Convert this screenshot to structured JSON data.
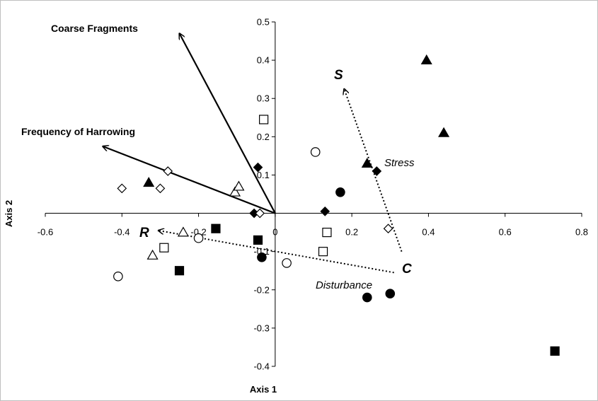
{
  "chart_data": {
    "type": "scatter",
    "title": "",
    "xlabel": "Axis 1",
    "ylabel": "Axis 2",
    "xlim": [
      -0.6,
      0.8
    ],
    "ylim": [
      -0.4,
      0.5
    ],
    "x_ticks": [
      "-0.6",
      "-0.4",
      "-0.2",
      "0",
      "0.2",
      "0.4",
      "0.6",
      "0.8"
    ],
    "y_ticks": [
      "0.5",
      "0.4",
      "0.3",
      "0.2",
      "0.1",
      "-0.1",
      "-0.2",
      "-0.3",
      "-0.4"
    ],
    "grid": false,
    "series": [
      {
        "marker": "filled-triangle",
        "points": [
          [
            -0.33,
            0.08
          ],
          [
            0.24,
            0.13
          ],
          [
            0.395,
            0.4
          ],
          [
            0.44,
            0.21
          ]
        ]
      },
      {
        "marker": "open-triangle",
        "points": [
          [
            -0.32,
            -0.11
          ],
          [
            -0.24,
            -0.05
          ],
          [
            -0.105,
            0.055
          ],
          [
            -0.095,
            0.07
          ]
        ]
      },
      {
        "marker": "filled-diamond",
        "points": [
          [
            -0.045,
            0.12
          ],
          [
            -0.055,
            0.0
          ],
          [
            0.13,
            0.005
          ],
          [
            0.265,
            0.11
          ]
        ]
      },
      {
        "marker": "open-diamond",
        "points": [
          [
            -0.4,
            0.065
          ],
          [
            -0.3,
            0.065
          ],
          [
            -0.28,
            0.11
          ],
          [
            -0.04,
            0.0
          ],
          [
            0.295,
            -0.04
          ]
        ]
      },
      {
        "marker": "filled-circle",
        "points": [
          [
            -0.035,
            -0.115
          ],
          [
            0.17,
            0.055
          ],
          [
            0.24,
            -0.22
          ],
          [
            0.3,
            -0.21
          ]
        ]
      },
      {
        "marker": "open-circle",
        "points": [
          [
            -0.41,
            -0.165
          ],
          [
            -0.2,
            -0.065
          ],
          [
            0.03,
            -0.13
          ],
          [
            0.105,
            0.16
          ]
        ]
      },
      {
        "marker": "filled-square",
        "points": [
          [
            -0.25,
            -0.15
          ],
          [
            -0.155,
            -0.04
          ],
          [
            -0.045,
            -0.07
          ],
          [
            0.73,
            -0.36
          ]
        ]
      },
      {
        "marker": "open-square",
        "points": [
          [
            -0.29,
            -0.09
          ],
          [
            -0.03,
            0.245
          ],
          [
            0.125,
            -0.1
          ],
          [
            0.135,
            -0.05
          ]
        ]
      }
    ],
    "vectors": [
      {
        "label": "Coarse Fragments",
        "to": [
          -0.25,
          0.47
        ],
        "style": "solid"
      },
      {
        "label": "Frequency of Harrowing",
        "to": [
          -0.45,
          0.175
        ],
        "style": "solid"
      }
    ],
    "csr_arrows": [
      {
        "label": "S",
        "from": [
          0.33,
          -0.1
        ],
        "to": [
          0.18,
          0.325
        ],
        "style": "dotted"
      },
      {
        "label": "R",
        "from": [
          0.31,
          -0.155
        ],
        "to": [
          -0.305,
          -0.045
        ],
        "style": "dotted"
      }
    ],
    "letters": {
      "s": "S",
      "r": "R",
      "c": "C"
    },
    "annotations": {
      "stress": "Stress",
      "disturbance": "Disturbance"
    }
  }
}
